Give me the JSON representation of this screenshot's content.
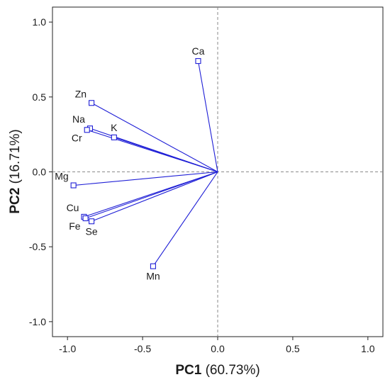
{
  "chart_data": {
    "type": "scatter",
    "subtype": "biplot-vectors",
    "xlabel": {
      "bold": "PC1",
      "rest": " (60.73%)"
    },
    "ylabel": {
      "bold": "PC2",
      "rest": " (16.71%)"
    },
    "xlim": [
      -1.1,
      1.1
    ],
    "ylim": [
      -1.1,
      1.1
    ],
    "xticks": [
      -1.0,
      -0.5,
      0.0,
      0.5,
      1.0
    ],
    "yticks": [
      -1.0,
      -0.5,
      0.0,
      0.5,
      1.0
    ],
    "xtick_labels": [
      "-1.0",
      "-0.5",
      "0.0",
      "0.5",
      "1.0"
    ],
    "ytick_labels": [
      "-1.0",
      "-0.5",
      "0.0",
      "0.5",
      "1.0"
    ],
    "grid": false,
    "zero_reference_lines": true,
    "vector_color": "#1f1fd6",
    "reference_line_color": "#8a8a8a",
    "points": [
      {
        "label": "Ca",
        "x": -0.13,
        "y": 0.74,
        "label_pos": "above"
      },
      {
        "label": "Zn",
        "x": -0.84,
        "y": 0.46,
        "label_pos": "above-left"
      },
      {
        "label": "Na",
        "x": -0.85,
        "y": 0.29,
        "label_pos": "above-left"
      },
      {
        "label": "Cr",
        "x": -0.87,
        "y": 0.28,
        "label_pos": "below-left"
      },
      {
        "label": "K",
        "x": -0.69,
        "y": 0.23,
        "label_pos": "above"
      },
      {
        "label": "Mg",
        "x": -0.96,
        "y": -0.09,
        "label_pos": "above-left"
      },
      {
        "label": "Cu",
        "x": -0.89,
        "y": -0.3,
        "label_pos": "above-left"
      },
      {
        "label": "Fe",
        "x": -0.88,
        "y": -0.31,
        "label_pos": "below-left"
      },
      {
        "label": "Se",
        "x": -0.84,
        "y": -0.33,
        "label_pos": "below"
      },
      {
        "label": "Mn",
        "x": -0.43,
        "y": -0.63,
        "label_pos": "below"
      }
    ]
  }
}
